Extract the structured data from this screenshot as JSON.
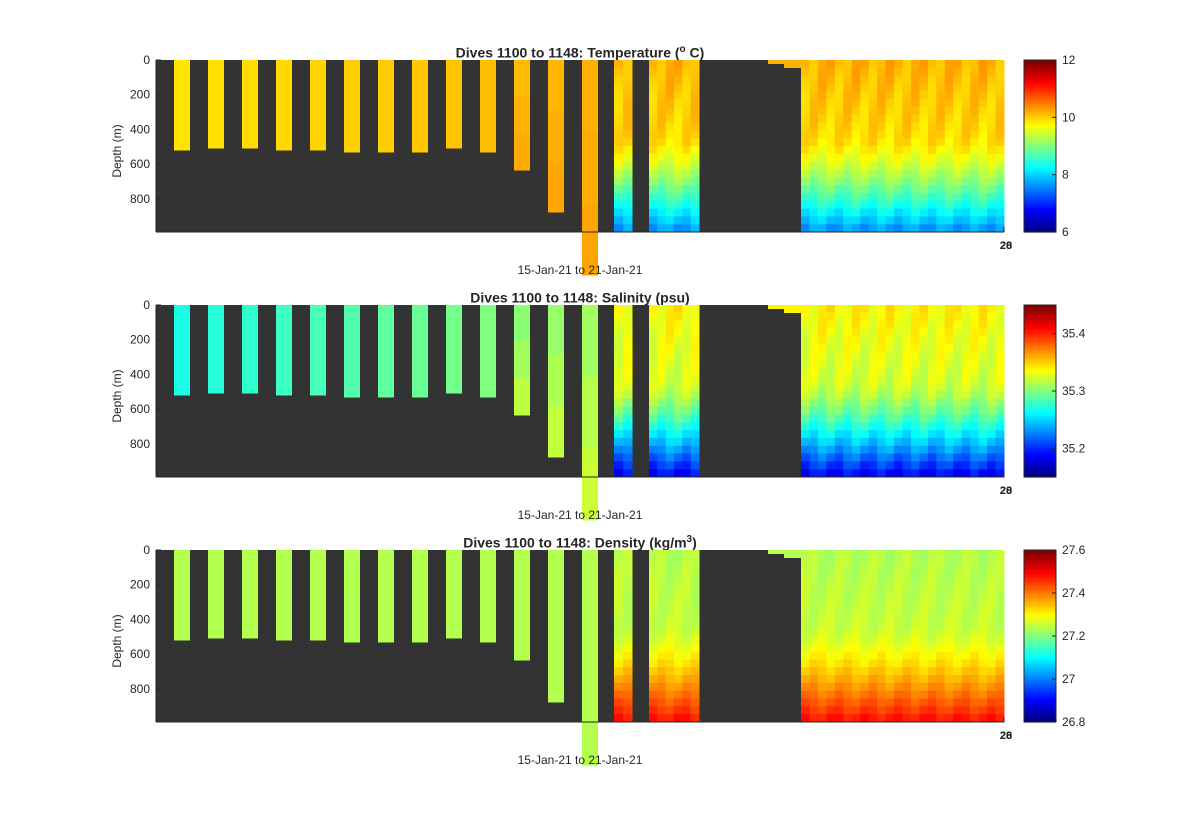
{
  "colormap": "jet",
  "background_color": "#333333",
  "chart_data": [
    {
      "type": "heatmap",
      "title_main": "Dives 1100 to 1148: Temperature (",
      "title_sup": "o",
      "title_end": " C)",
      "xlabel": "15-Jan-21 to 21-Jan-21",
      "ylabel": "Depth (m)",
      "ylim": [
        0,
        990
      ],
      "y_reversed": true,
      "yticks": [
        "0",
        "200",
        "400",
        "600",
        "800"
      ],
      "corner_ticks": [
        "28",
        "20"
      ],
      "colorbar": {
        "min": 6,
        "max": 12,
        "ticks": [
          "6",
          "8",
          "10",
          "12"
        ]
      },
      "profiles": {
        "shallow_top": 9.9,
        "shallow_mid": 10.2,
        "shallow_deep": 10.4,
        "deep_top": 10.2,
        "deep_mid": 9.6,
        "deep_deep": 7.7
      }
    },
    {
      "type": "heatmap",
      "title_main": "Dives 1100 to 1148: Salinity (psu)",
      "title_sup": "",
      "title_end": "",
      "xlabel": "15-Jan-21 to 21-Jan-21",
      "ylabel": "Depth (m)",
      "ylim": [
        0,
        990
      ],
      "y_reversed": true,
      "yticks": [
        "0",
        "200",
        "400",
        "600",
        "800"
      ],
      "corner_ticks": [
        "28",
        "20"
      ],
      "colorbar": {
        "min": 35.15,
        "max": 35.45,
        "ticks": [
          "35.2",
          "35.3",
          "35.4"
        ]
      },
      "profiles": {
        "shallow_top": 35.27,
        "shallow_mid": 35.31,
        "shallow_deep": 35.34,
        "deep_top": 35.34,
        "deep_mid": 35.3,
        "deep_deep": 35.19
      }
    },
    {
      "type": "heatmap",
      "title_main": "Dives 1100 to 1148: Density (kg/m",
      "title_sup": "3",
      "title_end": ")",
      "xlabel": "15-Jan-21 to 21-Jan-21",
      "ylabel": "Depth (m)",
      "ylim": [
        0,
        990
      ],
      "y_reversed": true,
      "yticks": [
        "0",
        "200",
        "400",
        "600",
        "800"
      ],
      "corner_ticks": [
        "28",
        "20"
      ],
      "colorbar": {
        "min": 26.8,
        "max": 27.6,
        "ticks": [
          "26.8",
          "27",
          "27.2",
          "27.4",
          "27.6"
        ]
      },
      "profiles": {
        "shallow_top": 27.24,
        "shallow_mid": 27.24,
        "shallow_deep": 27.24,
        "deep_top": 27.24,
        "deep_mid": 27.28,
        "deep_deep": 27.48
      }
    }
  ]
}
